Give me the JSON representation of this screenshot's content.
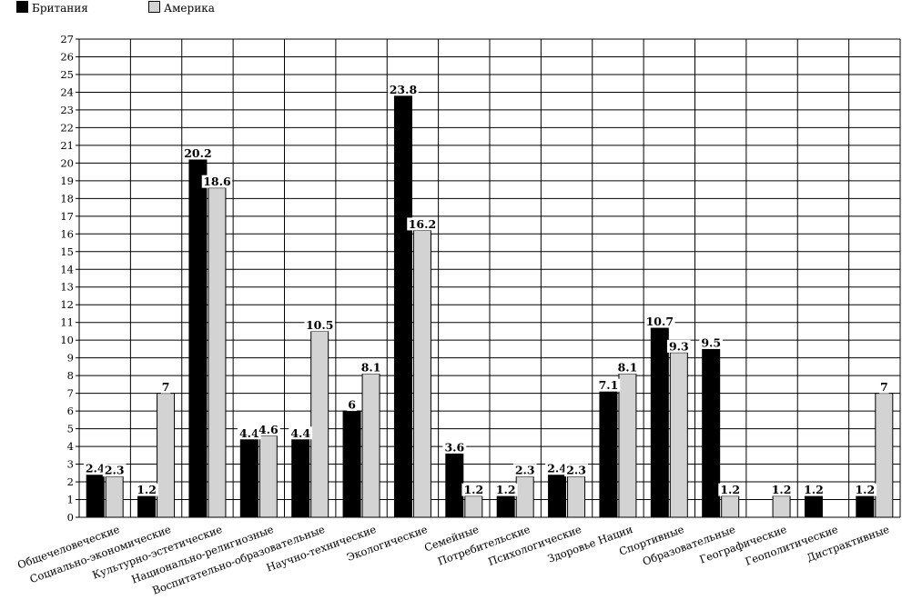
{
  "chart_data": {
    "type": "bar",
    "categories": [
      "Общечеловеческие",
      "Социально-экономические",
      "Культурно-эстетические",
      "Национально-религиозные",
      "Воспитательно-образовательные",
      "Научно-технические",
      "Экологические",
      "Семейные",
      "Потребительские",
      "Психологические",
      "Здоровье Нации",
      "Спортивные",
      "Образовательные",
      "Географические",
      "Геополитические",
      "Дистрактивные"
    ],
    "series": [
      {
        "name": "Британия",
        "color": "#000000",
        "values": [
          2.4,
          1.2,
          20.2,
          4.4,
          4.4,
          6,
          23.8,
          3.6,
          1.2,
          2.4,
          7.1,
          10.7,
          9.5,
          null,
          1.2,
          1.2
        ]
      },
      {
        "name": "Америка",
        "color": "#d3d3d3",
        "values": [
          2.3,
          7,
          18.6,
          4.6,
          10.5,
          8.1,
          16.2,
          1.2,
          2.3,
          2.3,
          8.1,
          9.3,
          1.2,
          1.2,
          null,
          7
        ]
      }
    ],
    "ylim": [
      0,
      27
    ],
    "ytick_step": 1,
    "grid": true,
    "legend_position": "top-left"
  }
}
